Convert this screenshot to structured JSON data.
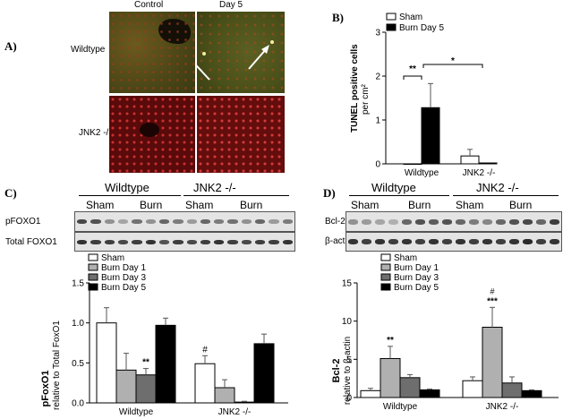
{
  "panels": {
    "a": {
      "letter": "A)",
      "col_control": "Control",
      "col_day5": "Day 5",
      "row_wt": "Wildtype",
      "row_jnk": "JNK2 -/-"
    },
    "b": {
      "letter": "B)",
      "ylabel1": "TUNEL positive cells",
      "ylabel2": "per cm²",
      "yticks": [
        "0",
        "1",
        "2",
        "3"
      ],
      "categories": [
        "Wildtype",
        "JNK2 -/-"
      ],
      "sig1": "**",
      "sig2": "*",
      "legend": [
        "Sham",
        "Burn Day 5"
      ]
    },
    "c": {
      "letter": "C)",
      "group_wt": "Wildtype",
      "group_jnk": "JNK2 -/-",
      "sham1": "Sham",
      "burn1": "Burn",
      "sham2": "Sham",
      "burn2": "Burn",
      "row1": "pFOXO1",
      "row2": "Total FOXO1",
      "legend": [
        "Sham",
        "Burn Day 1",
        "Burn Day 3",
        "Burn Day 5"
      ],
      "ylabel1": "pFoxO1",
      "ylabel2": "relative to Total FoxO1",
      "yticks": [
        "0.0",
        "0.5",
        "1.0",
        "1.5"
      ],
      "categories": [
        "Wildtype",
        "JNK2 -/-"
      ],
      "sig_wt": "**",
      "sig_jnk": "#"
    },
    "d": {
      "letter": "D)",
      "group_wt": "Wildtype",
      "group_jnk": "JNK2 -/-",
      "sham1": "Sham",
      "burn1": "Burn",
      "sham2": "Sham",
      "burn2": "Burn",
      "row1": "Bcl-2",
      "row2": "β-actin",
      "legend": [
        "Sham",
        "Burn Day 1",
        "Burn Day 3",
        "Burn Day 5"
      ],
      "ylabel1": "Bcl-2",
      "ylabel2": "relative to β-actin",
      "yticks": [
        "0",
        "5",
        "10",
        "15"
      ],
      "categories": [
        "Wildtype",
        "JNK2 -/-"
      ],
      "sig_wt": "**",
      "sig_jnk_hash": "#",
      "sig_jnk": "***"
    }
  },
  "colors": {
    "sham": "#ffffff",
    "day1": "#b0b0b0",
    "day3": "#6e6e6e",
    "day5": "#000000",
    "micro_green": "#4d5a1c",
    "micro_red": "#7a1010"
  },
  "chart_data": [
    {
      "id": "B",
      "type": "bar",
      "categories": [
        "Wildtype",
        "JNK2 -/-"
      ],
      "series": [
        {
          "name": "Sham",
          "values": [
            0.0,
            0.18
          ],
          "errors": [
            0.0,
            0.15
          ]
        },
        {
          "name": "Burn Day 5",
          "values": [
            1.28,
            0.02
          ],
          "errors": [
            0.55,
            0.0
          ]
        }
      ],
      "ylabel": "TUNEL positive cells per cm²",
      "ylim": [
        0,
        3
      ],
      "legend": "top-right"
    },
    {
      "id": "C",
      "type": "bar",
      "categories": [
        "Wildtype",
        "JNK2 -/-"
      ],
      "series": [
        {
          "name": "Sham",
          "values": [
            1.0,
            0.49
          ],
          "errors": [
            0.19,
            0.1
          ]
        },
        {
          "name": "Burn Day 1",
          "values": [
            0.41,
            0.19
          ],
          "errors": [
            0.21,
            0.1
          ]
        },
        {
          "name": "Burn Day 3",
          "values": [
            0.35,
            0.01
          ],
          "errors": [
            0.08,
            0.01
          ]
        },
        {
          "name": "Burn Day 5",
          "values": [
            0.97,
            0.74
          ],
          "errors": [
            0.09,
            0.12
          ]
        }
      ],
      "ylabel": "pFoxO1 relative to Total FoxO1",
      "ylim": [
        0,
        1.5
      ],
      "legend": "top-left"
    },
    {
      "id": "D",
      "type": "bar",
      "categories": [
        "Wildtype",
        "JNK2 -/-"
      ],
      "series": [
        {
          "name": "Sham",
          "values": [
            0.9,
            2.2
          ],
          "errors": [
            0.3,
            0.5
          ]
        },
        {
          "name": "Burn Day 1",
          "values": [
            5.1,
            9.2
          ],
          "errors": [
            1.6,
            2.6
          ]
        },
        {
          "name": "Burn Day 3",
          "values": [
            2.6,
            1.9
          ],
          "errors": [
            0.4,
            0.8
          ]
        },
        {
          "name": "Burn Day 5",
          "values": [
            1.0,
            0.9
          ],
          "errors": [
            0.1,
            0.1
          ]
        }
      ],
      "ylabel": "Bcl-2 relative to β-actin",
      "ylim": [
        0,
        15
      ],
      "legend": "top-left"
    }
  ]
}
